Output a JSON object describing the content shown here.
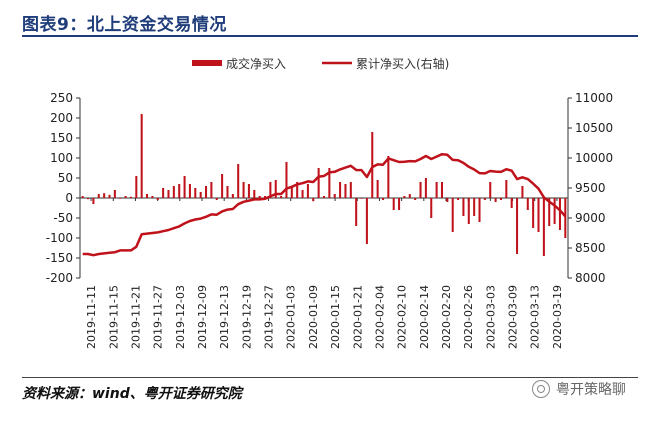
{
  "title": "图表9：北上资金交易情况",
  "source": "资料来源：wind、粤开证券研究院",
  "watermark": "粤开策略聊",
  "colors": {
    "bar": "#c0121b",
    "line": "#c0121b",
    "title": "#1f3d7a"
  },
  "chart_data": {
    "type": "bar+line",
    "legend_position": "top-center",
    "grid": false,
    "y_left": {
      "min": -200,
      "max": 250,
      "ticks": [
        -200,
        -150,
        -100,
        -50,
        0,
        50,
        100,
        150,
        200,
        250
      ]
    },
    "y_right": {
      "min": 8000,
      "max": 11000,
      "ticks": [
        8000,
        8500,
        9000,
        9500,
        10000,
        10500,
        11000
      ]
    },
    "x_tick_labels": [
      "2019-11-11",
      "2019-11-15",
      "2019-11-21",
      "2019-11-27",
      "2019-12-03",
      "2019-12-09",
      "2019-12-13",
      "2019-12-19",
      "2019-12-27",
      "2020-01-03",
      "2020-01-09",
      "2020-01-15",
      "2020-01-21",
      "2020-02-04",
      "2020-02-10",
      "2020-02-14",
      "2020-02-20",
      "2020-02-26",
      "2020-03-03",
      "2020-03-09",
      "2020-03-13",
      "2020-03-19"
    ],
    "series": [
      {
        "name": "成交净买入",
        "type": "bar",
        "axis": "left",
        "values": [
          5,
          -3,
          -15,
          10,
          12,
          8,
          20,
          -2,
          5,
          3,
          55,
          210,
          10,
          5,
          -5,
          25,
          20,
          30,
          35,
          55,
          35,
          25,
          15,
          30,
          40,
          -5,
          60,
          30,
          10,
          85,
          40,
          35,
          20,
          5,
          5,
          40,
          45,
          5,
          90,
          30,
          40,
          20,
          35,
          -8,
          75,
          5,
          75,
          10,
          40,
          35,
          40,
          -70,
          -2,
          -115,
          165,
          45,
          -5,
          105,
          -30,
          -30,
          5,
          10,
          -5,
          40,
          50,
          -50,
          40,
          40,
          -10,
          -85,
          -5,
          -45,
          -65,
          -45,
          -60,
          -5,
          40,
          -10,
          -5,
          45,
          -25,
          -140,
          30,
          -30,
          -75,
          -85,
          -145,
          -70,
          -65,
          -80,
          -100
        ]
      },
      {
        "name": "累计净买入(右轴)",
        "type": "line",
        "axis": "right",
        "values": [
          8400,
          8400,
          8380,
          8400,
          8410,
          8420,
          8430,
          8460,
          8460,
          8460,
          8520,
          8730,
          8740,
          8750,
          8760,
          8780,
          8800,
          8830,
          8860,
          8910,
          8950,
          8975,
          8990,
          9020,
          9060,
          9055,
          9110,
          9140,
          9150,
          9230,
          9270,
          9290,
          9310,
          9310,
          9320,
          9360,
          9400,
          9400,
          9490,
          9520,
          9560,
          9580,
          9610,
          9600,
          9690,
          9700,
          9760,
          9770,
          9810,
          9840,
          9870,
          9800,
          9798,
          9683,
          9848,
          9893,
          9888,
          9993,
          9963,
          9933,
          9938,
          9948,
          9943,
          9983,
          10033,
          9983,
          10023,
          10063,
          10053,
          9968,
          9963,
          9918,
          9853,
          9808,
          9748,
          9743,
          9783,
          9773,
          9768,
          9813,
          9788,
          9648,
          9678,
          9648,
          9573,
          9488,
          9343,
          9273,
          9208,
          9128,
          9028
        ]
      }
    ]
  }
}
